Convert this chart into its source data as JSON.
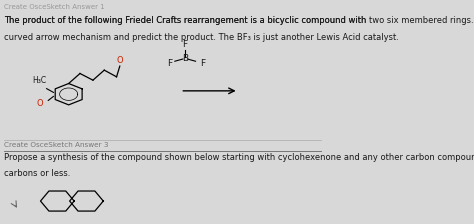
{
  "bg_color": "#d8d8d8",
  "header_text": "Create OsceSketch Answer 1",
  "para1_line1": "The product of the following Friedel Crafts rearrangement is a bicyclic compound with two six membered rings. Draw a",
  "para1_line2": "curved arrow mechanism and predict the product. The BF₃ is just another Lewis Acid catalyst.",
  "para1_bold_phrase": "two six membered rings",
  "section_label": "Create OsceSketch Answer 3",
  "para2_line1": "Propose a synthesis of the compound shown below starting with cyclohexenone and any other carbon compounds of four",
  "para2_line2": "carbons or less.",
  "text_color": "#1a1a1a",
  "light_text_color": "#555555"
}
